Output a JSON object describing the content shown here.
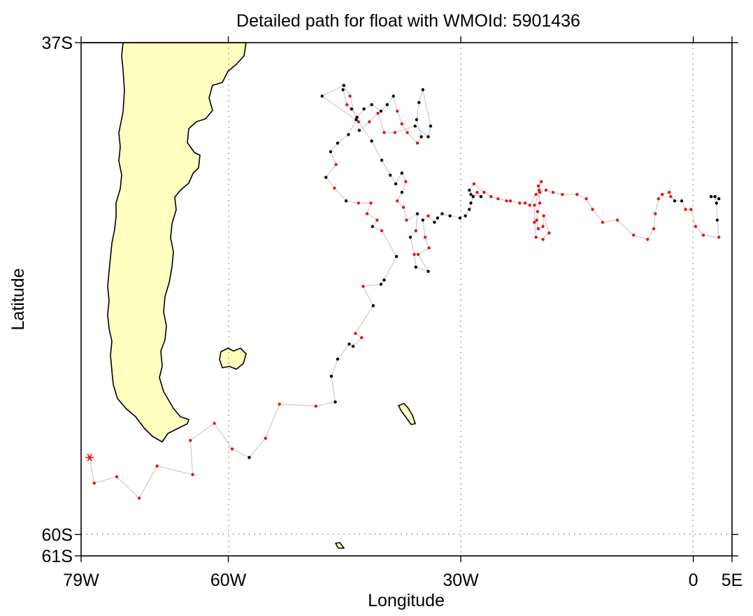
{
  "chart_data": {
    "type": "scatter",
    "title": "Detailed path for float with WMOId: 5901436",
    "xlabel": "Longitude",
    "ylabel": "Latitude",
    "xlim": [
      -79,
      5
    ],
    "ylim": [
      -61,
      -37
    ],
    "x_ticks": [
      {
        "value": -79,
        "label": "79W"
      },
      {
        "value": -60,
        "label": "60W"
      },
      {
        "value": -30,
        "label": "30W"
      },
      {
        "value": 0,
        "label": "0"
      },
      {
        "value": 5,
        "label": "5E"
      }
    ],
    "y_ticks": [
      {
        "value": -37,
        "label": "37S"
      },
      {
        "value": -60,
        "label": "60S"
      },
      {
        "value": -61,
        "label": "61S"
      }
    ],
    "grid": "dotted at 60W, 30W, 0 and 60S",
    "land_color": "#ffffc0",
    "path_color": "#cccccc",
    "colors": {
      "red": "#ee1111",
      "black": "#000000"
    },
    "start_marker": {
      "lon": -77.9,
      "lat": -56.4,
      "symbol": "asterisk",
      "color": "#ee1111"
    },
    "series": [
      {
        "points": [
          [
            -77.9,
            -56.4,
            "r"
          ],
          [
            -77.3,
            -57.6,
            "r"
          ],
          [
            -74.4,
            -57.3,
            "r"
          ],
          [
            -71.5,
            -58.3,
            "r"
          ],
          [
            -69.2,
            -56.8,
            "r"
          ],
          [
            -64.6,
            -57.2,
            "r"
          ],
          [
            -64.9,
            -55.6,
            "r"
          ],
          [
            -61.8,
            -54.8,
            "r"
          ],
          [
            -59.5,
            -56.0,
            "r"
          ],
          [
            -57.3,
            -56.4,
            "k"
          ],
          [
            -55.2,
            -55.5,
            "r"
          ],
          [
            -53.4,
            -53.9,
            "r"
          ],
          [
            -48.7,
            -54.0,
            "r"
          ],
          [
            -46.2,
            -53.8,
            "k"
          ],
          [
            -46.7,
            -52.6,
            "k"
          ],
          [
            -45.9,
            -51.8,
            "k"
          ],
          [
            -44.4,
            -51.1,
            "k"
          ],
          [
            -43.9,
            -51.2,
            "k"
          ],
          [
            -42.8,
            -50.8,
            "r"
          ],
          [
            -43.6,
            -50.6,
            "r"
          ],
          [
            -41.3,
            -49.3,
            "k"
          ],
          [
            -42.6,
            -48.4,
            "r"
          ],
          [
            -40.3,
            -48.3,
            "k"
          ],
          [
            -39.9,
            -48.1,
            "k"
          ],
          [
            -38.3,
            -47.0,
            "k"
          ],
          [
            -40.2,
            -45.8,
            "r"
          ],
          [
            -41.4,
            -45.6,
            "k"
          ],
          [
            -40.8,
            -45.3,
            "r"
          ],
          [
            -42.1,
            -45.0,
            "r"
          ],
          [
            -41.6,
            -44.5,
            "r"
          ],
          [
            -43.2,
            -44.5,
            "r"
          ],
          [
            -44.8,
            -44.4,
            "k"
          ],
          [
            -46.3,
            -43.8,
            "r"
          ],
          [
            -47.4,
            -43.3,
            "k"
          ],
          [
            -46.1,
            -42.7,
            "r"
          ],
          [
            -46.8,
            -42.1,
            "k"
          ],
          [
            -45.9,
            -41.7,
            "k"
          ],
          [
            -44.5,
            -41.3,
            "k"
          ],
          [
            -43.5,
            -40.6,
            "k"
          ],
          [
            -44.3,
            -39.5,
            "r"
          ],
          [
            -45.1,
            -39.0,
            "k"
          ],
          [
            -47.9,
            -39.5,
            "k"
          ],
          [
            -43.2,
            -40.7,
            "r"
          ],
          [
            -41.5,
            -41.6,
            "k"
          ],
          [
            -40.2,
            -42.5,
            "k"
          ],
          [
            -39.1,
            -43.2,
            "k"
          ],
          [
            -38.4,
            -43.6,
            "k"
          ],
          [
            -37.6,
            -43.1,
            "k"
          ],
          [
            -37.1,
            -43.5,
            "r"
          ],
          [
            -37.6,
            -44.0,
            "k"
          ],
          [
            -38.2,
            -44.4,
            "r"
          ],
          [
            -37.4,
            -44.7,
            "r"
          ],
          [
            -37.0,
            -45.3,
            "r"
          ],
          [
            -35.6,
            -45.0,
            "k"
          ],
          [
            -35.8,
            -45.8,
            "r"
          ],
          [
            -36.5,
            -46.1,
            "k"
          ],
          [
            -36.0,
            -46.9,
            "r"
          ],
          [
            -35.8,
            -47.5,
            "k"
          ],
          [
            -34.2,
            -47.7,
            "k"
          ],
          [
            -35.5,
            -46.9,
            "r"
          ],
          [
            -34.1,
            -46.6,
            "r"
          ],
          [
            -34.6,
            -46.1,
            "r"
          ],
          [
            -34.9,
            -45.3,
            "k"
          ],
          [
            -34.2,
            -45.1,
            "r"
          ],
          [
            -33.4,
            -45.4,
            "k"
          ],
          [
            -33.0,
            -45.2,
            "k"
          ],
          [
            -32.4,
            -45.0,
            "k"
          ],
          [
            -31.4,
            -45.1,
            "k"
          ],
          [
            -30.1,
            -45.2,
            "k"
          ],
          [
            -29.4,
            -45.1,
            "k"
          ],
          [
            -28.9,
            -44.8,
            "k"
          ],
          [
            -28.7,
            -44.5,
            "k"
          ],
          [
            -28.4,
            -44.2,
            "k"
          ],
          [
            -27.9,
            -44.0,
            "r"
          ],
          [
            -27.4,
            -44.2,
            "k"
          ],
          [
            -28.7,
            -44.1,
            "k"
          ],
          [
            -28.9,
            -43.9,
            "k"
          ],
          [
            -28.3,
            -43.6,
            "r"
          ],
          [
            -27.0,
            -44.0,
            "r"
          ],
          [
            -26.1,
            -44.2,
            "r"
          ],
          [
            -25.2,
            -44.3,
            "r"
          ],
          [
            -24.1,
            -44.4,
            "r"
          ],
          [
            -23.6,
            -44.4,
            "r"
          ],
          [
            -22.4,
            -44.5,
            "r"
          ],
          [
            -21.7,
            -44.5,
            "r"
          ],
          [
            -21.1,
            -44.6,
            "r"
          ],
          [
            -20.3,
            -44.1,
            "r"
          ],
          [
            -19.9,
            -43.9,
            "r"
          ],
          [
            -19.6,
            -43.5,
            "r"
          ],
          [
            -20.0,
            -43.7,
            "r"
          ],
          [
            -19.8,
            -44.5,
            "r"
          ],
          [
            -20.1,
            -44.9,
            "r"
          ],
          [
            -20.2,
            -45.3,
            "r"
          ],
          [
            -20.0,
            -45.7,
            "r"
          ],
          [
            -19.4,
            -45.6,
            "r"
          ],
          [
            -19.3,
            -45.1,
            "r"
          ],
          [
            -18.6,
            -45.9,
            "r"
          ],
          [
            -19.4,
            -46.2,
            "r"
          ],
          [
            -20.3,
            -46.1,
            "r"
          ],
          [
            -20.5,
            -45.4,
            "r"
          ],
          [
            -20.5,
            -44.6,
            "r"
          ],
          [
            -19.8,
            -44.0,
            "r"
          ],
          [
            -19.0,
            -43.9,
            "r"
          ],
          [
            -18.1,
            -44.0,
            "r"
          ],
          [
            -16.9,
            -44.1,
            "r"
          ],
          [
            -15.0,
            -44.1,
            "r"
          ],
          [
            -13.8,
            -44.3,
            "r"
          ],
          [
            -13.0,
            -44.8,
            "r"
          ],
          [
            -11.7,
            -45.4,
            "r"
          ],
          [
            -9.8,
            -45.3,
            "r"
          ],
          [
            -7.7,
            -46.0,
            "r"
          ],
          [
            -5.9,
            -46.2,
            "r"
          ],
          [
            -5.1,
            -45.7,
            "r"
          ],
          [
            -4.9,
            -45.0,
            "r"
          ],
          [
            -4.5,
            -44.3,
            "r"
          ],
          [
            -4.0,
            -44.1,
            "r"
          ],
          [
            -3.1,
            -44.0,
            "r"
          ],
          [
            -2.9,
            -44.2,
            "r"
          ],
          [
            -2.4,
            -44.4,
            "k"
          ],
          [
            -1.5,
            -44.4,
            "k"
          ],
          [
            -1.0,
            -44.8,
            "r"
          ],
          [
            -0.3,
            -44.8,
            "r"
          ],
          [
            0.3,
            -45.6,
            "r"
          ],
          [
            1.3,
            -46.0,
            "r"
          ],
          [
            3.3,
            -46.1,
            "r"
          ],
          [
            3.1,
            -45.3,
            "k"
          ],
          [
            3.0,
            -44.5,
            "k"
          ],
          [
            2.8,
            -44.2,
            "k"
          ],
          [
            2.3,
            -44.2,
            "k"
          ],
          [
            3.3,
            -44.3,
            "k"
          ]
        ]
      },
      {
        "points": [
          [
            -45.2,
            -39.2,
            "k"
          ],
          [
            -44.7,
            -39.9,
            "r"
          ],
          [
            -44.1,
            -40.1,
            "k"
          ],
          [
            -43.4,
            -40.5,
            "k"
          ],
          [
            -42.5,
            -40.1,
            "k"
          ],
          [
            -41.5,
            -39.9,
            "k"
          ],
          [
            -40.3,
            -40.2,
            "k"
          ],
          [
            -39.5,
            -39.9,
            "k"
          ],
          [
            -38.7,
            -39.5,
            "k"
          ],
          [
            -38.2,
            -40.2,
            "r"
          ],
          [
            -37.6,
            -40.8,
            "r"
          ],
          [
            -36.9,
            -41.2,
            "r"
          ],
          [
            -35.6,
            -41.7,
            "r"
          ],
          [
            -35.1,
            -41.4,
            "k"
          ],
          [
            -35.7,
            -40.6,
            "k"
          ],
          [
            -35.4,
            -39.8,
            "k"
          ],
          [
            -34.9,
            -39.2,
            "k"
          ],
          [
            -33.9,
            -40.9,
            "k"
          ],
          [
            -34.2,
            -41.4,
            "k"
          ],
          [
            -35.9,
            -40.9,
            "k"
          ],
          [
            -38.5,
            -41.2,
            "r"
          ],
          [
            -39.9,
            -41.2,
            "r"
          ],
          [
            -40.7,
            -40.3,
            "r"
          ],
          [
            -41.8,
            -40.7,
            "r"
          ],
          [
            -43.1,
            -41.1,
            "k"
          ]
        ]
      }
    ]
  }
}
